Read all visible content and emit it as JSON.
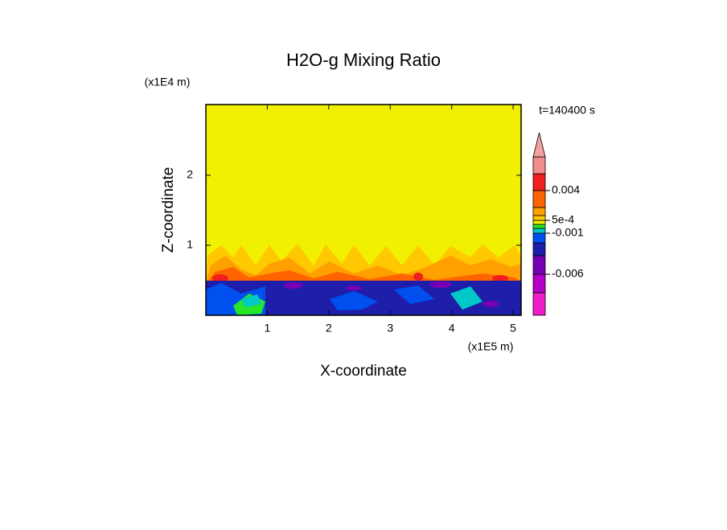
{
  "chart_data": {
    "type": "contour",
    "title": "H2O-g Mixing Ratio",
    "xlabel": "X-coordinate",
    "ylabel": "Z-coordinate",
    "xunit": "(x1E5 m)",
    "yunit": "(x1E4 m)",
    "time_label": "t=140400 s",
    "xlim": [
      0,
      5.13
    ],
    "ylim": [
      0,
      3.01
    ],
    "xticks": [
      1,
      2,
      3,
      4,
      5
    ],
    "yticks": [
      1,
      2
    ],
    "colorbar": {
      "levels": [
        -0.012,
        -0.009,
        -0.006,
        -0.003,
        -0.002,
        -0.001,
        -0.0005,
        0,
        0.0005,
        0.001,
        0.002,
        0.004,
        0.006,
        0.008
      ],
      "colors": [
        "#f01ec8",
        "#b400c8",
        "#7800b4",
        "#1e1eaa",
        "#0050f0",
        "#00c8c8",
        "#28e628",
        "#f0f000",
        "#ffc800",
        "#ffa000",
        "#ff6400",
        "#f01e1e",
        "#f08c8c"
      ],
      "extend_color": "#f4a0a0",
      "ticks": [
        -0.006,
        -0.001,
        {
          "value": 0.0005,
          "label": "5e-4"
        },
        0.004
      ]
    }
  }
}
